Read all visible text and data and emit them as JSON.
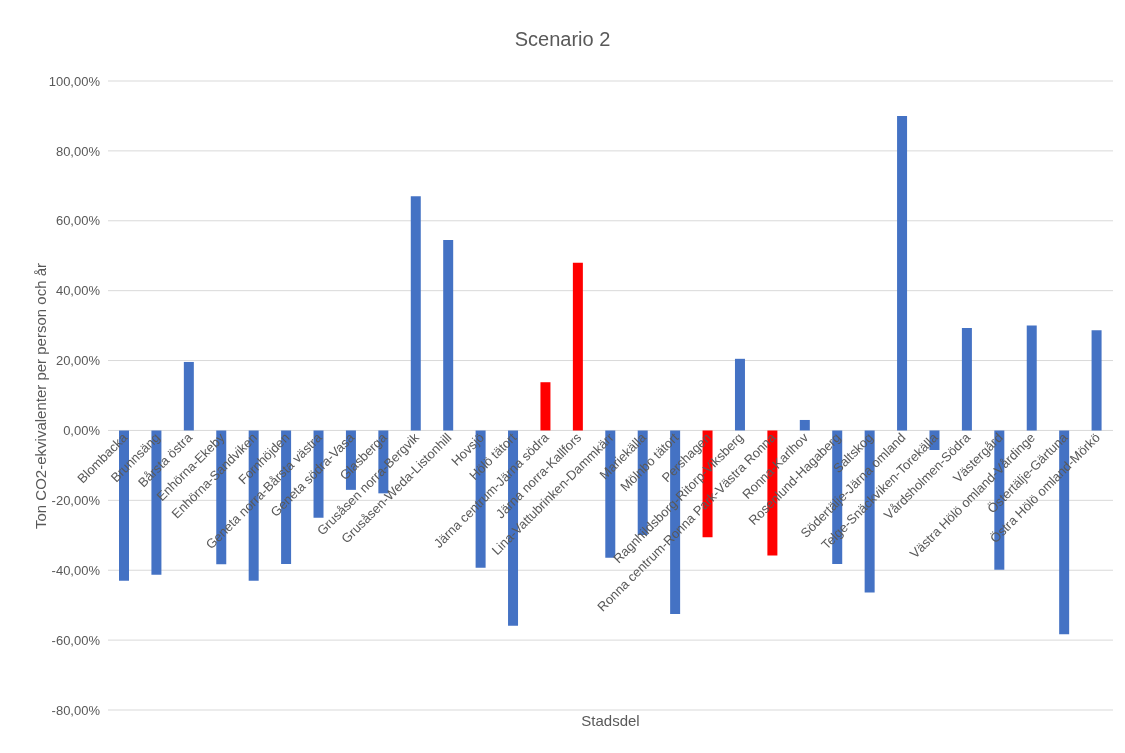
{
  "chart_data": {
    "type": "bar",
    "title": "Scenario 2",
    "xlabel": "Stadsdel",
    "ylabel": "Ton CO2-ekvivalenter per person och år",
    "categories": [
      "Blombacka",
      "Brunnsäng",
      "Bårsta östra",
      "Enhörna-Ekeby",
      "Enhörna-Sandviken",
      "Fornhöjden",
      "Geneta norra-Bårsta västra",
      "Geneta södra-Vasa",
      "Glasberga",
      "Grusåsen norra-Bergvik",
      "Grusåsen-Weda-Listonhill",
      "Hovsjö",
      "Hölö tätort",
      "Järna centrum-Järna södra",
      "Järna norra-Kallfors",
      "Lina-Vattubrinken-Dammkärr",
      "Mariekälla",
      "Mölnbo tätort",
      "Pershagen",
      "Ragnhildsborg-Ritorp-Viksberg",
      "Ronna centrum-Ronna Park-Västra Ronna",
      "Ronna-Karlhov",
      "Rosenlund-Hagaberg",
      "Saltskog",
      "Södertälje-Järna omland",
      "Telge-Snäckviken-Torekälla",
      "Vårdsholmen-Södra",
      "Västergård",
      "Västra Hölö omland-Vårdinge",
      "Östertälje-Gärtuna",
      "Östra Hölö omland-Mörkö"
    ],
    "values": [
      -43,
      -41.3,
      19.6,
      -38.3,
      -43,
      -38.2,
      -25,
      -17,
      -18,
      67,
      54.5,
      -39.3,
      -55.9,
      13.8,
      48,
      -36.4,
      -29.9,
      -52.5,
      -30.6,
      20.5,
      -35.8,
      3,
      -38.2,
      -46.4,
      90,
      -5.6,
      29.3,
      -39.9,
      30,
      -58.3,
      28.7
    ],
    "colors": [
      "#4472c4",
      "#4472c4",
      "#4472c4",
      "#4472c4",
      "#4472c4",
      "#4472c4",
      "#4472c4",
      "#4472c4",
      "#4472c4",
      "#4472c4",
      "#4472c4",
      "#4472c4",
      "#4472c4",
      "#ff0000",
      "#ff0000",
      "#4472c4",
      "#4472c4",
      "#4472c4",
      "#ff0000",
      "#4472c4",
      "#ff0000",
      "#4472c4",
      "#4472c4",
      "#4472c4",
      "#4472c4",
      "#4472c4",
      "#4472c4",
      "#4472c4",
      "#4472c4",
      "#4472c4",
      "#4472c4"
    ],
    "ylim": [
      -80,
      100
    ],
    "yticks": [
      {
        "value": -80,
        "label": "-80,00%"
      },
      {
        "value": -60,
        "label": "-60,00%"
      },
      {
        "value": -40,
        "label": "-40,00%"
      },
      {
        "value": -20,
        "label": "-20,00%"
      },
      {
        "value": 0,
        "label": "0,00%"
      },
      {
        "value": 20,
        "label": "20,00%"
      },
      {
        "value": 40,
        "label": "40,00%"
      },
      {
        "value": 60,
        "label": "60,00%"
      },
      {
        "value": 80,
        "label": "80,00%"
      },
      {
        "value": 100,
        "label": "100,00%"
      }
    ],
    "grid": "y",
    "legend": false
  }
}
